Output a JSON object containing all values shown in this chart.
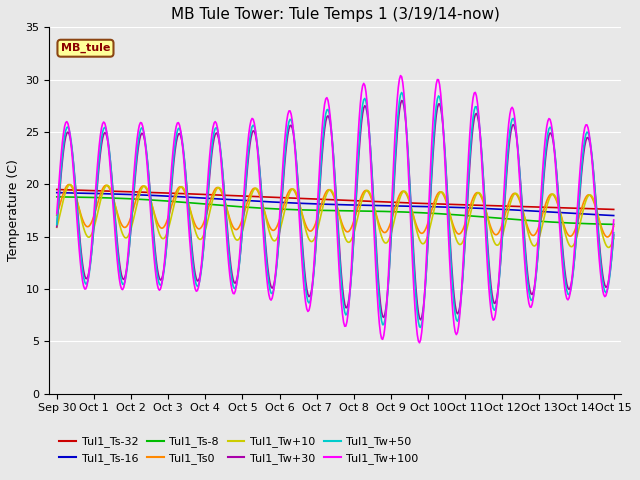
{
  "title": "MB Tule Tower: Tule Temps 1 (3/19/14-now)",
  "ylabel": "Temperature (C)",
  "ylim": [
    0,
    35
  ],
  "yticks": [
    0,
    5,
    10,
    15,
    20,
    25,
    30,
    35
  ],
  "xlim": [
    -0.2,
    15.2
  ],
  "xtick_positions": [
    0,
    1,
    2,
    3,
    4,
    5,
    6,
    7,
    8,
    9,
    10,
    11,
    12,
    13,
    14,
    15
  ],
  "xtick_labels": [
    "Sep 30",
    "Oct 1",
    "Oct 2",
    "Oct 3",
    "Oct 4",
    "Oct 5",
    "Oct 6",
    "Oct 7",
    "Oct 8",
    "Oct 9",
    "Oct 10",
    "Oct 11",
    "Oct 12",
    "Oct 13",
    "Oct 14",
    "Oct 15"
  ],
  "background_color": "#e8e8e8",
  "legend_box_color": "#ffff99",
  "legend_box_edge": "#8B4513",
  "series_labels": [
    "Tul1_Ts-32",
    "Tul1_Ts-16",
    "Tul1_Ts-8",
    "Tul1_Ts0",
    "Tul1_Tw+10",
    "Tul1_Tw+30",
    "Tul1_Tw+50",
    "Tul1_Tw+100"
  ],
  "series_colors": [
    "#cc0000",
    "#0000cc",
    "#00bb00",
    "#ff8800",
    "#cccc00",
    "#aa00aa",
    "#00cccc",
    "#ff00ff"
  ],
  "grid_color": "#ffffff",
  "title_fontsize": 11,
  "label_fontsize": 9,
  "tick_fontsize": 8,
  "legend_fontsize": 8
}
